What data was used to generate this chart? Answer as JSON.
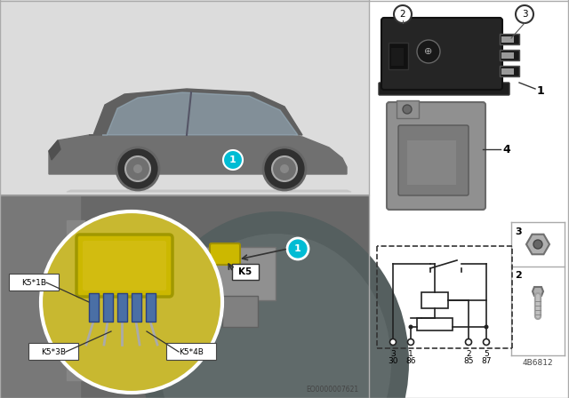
{
  "bg_color": "#ffffff",
  "callout_color": "#00bcd4",
  "callout_text_color": "#ffffff",
  "yellow_relay_color": "#ccb800",
  "blue_connector_color": "#4a6fa5",
  "k5_labels": [
    "K5*1B",
    "K5*3B",
    "K5*4B"
  ],
  "k5_label": "K5",
  "circuit_pins_top": [
    "3",
    "1",
    "2",
    "5"
  ],
  "circuit_pin_labels": [
    "30",
    "86",
    "85",
    "87"
  ],
  "bottom_ref": "EO0000007621",
  "part_ref": "4B6812",
  "fig_width": 6.4,
  "fig_height": 4.48,
  "line_color": "#222222",
  "dark_relay_color": "#2a2a2a",
  "bracket_color": "#888888",
  "car_body_color": "#707070",
  "car_window_color": "#9ab0be",
  "wheel_color": "#303030",
  "mech_bg_color": "#686868",
  "top_panel_bg": "#dcdcdc"
}
